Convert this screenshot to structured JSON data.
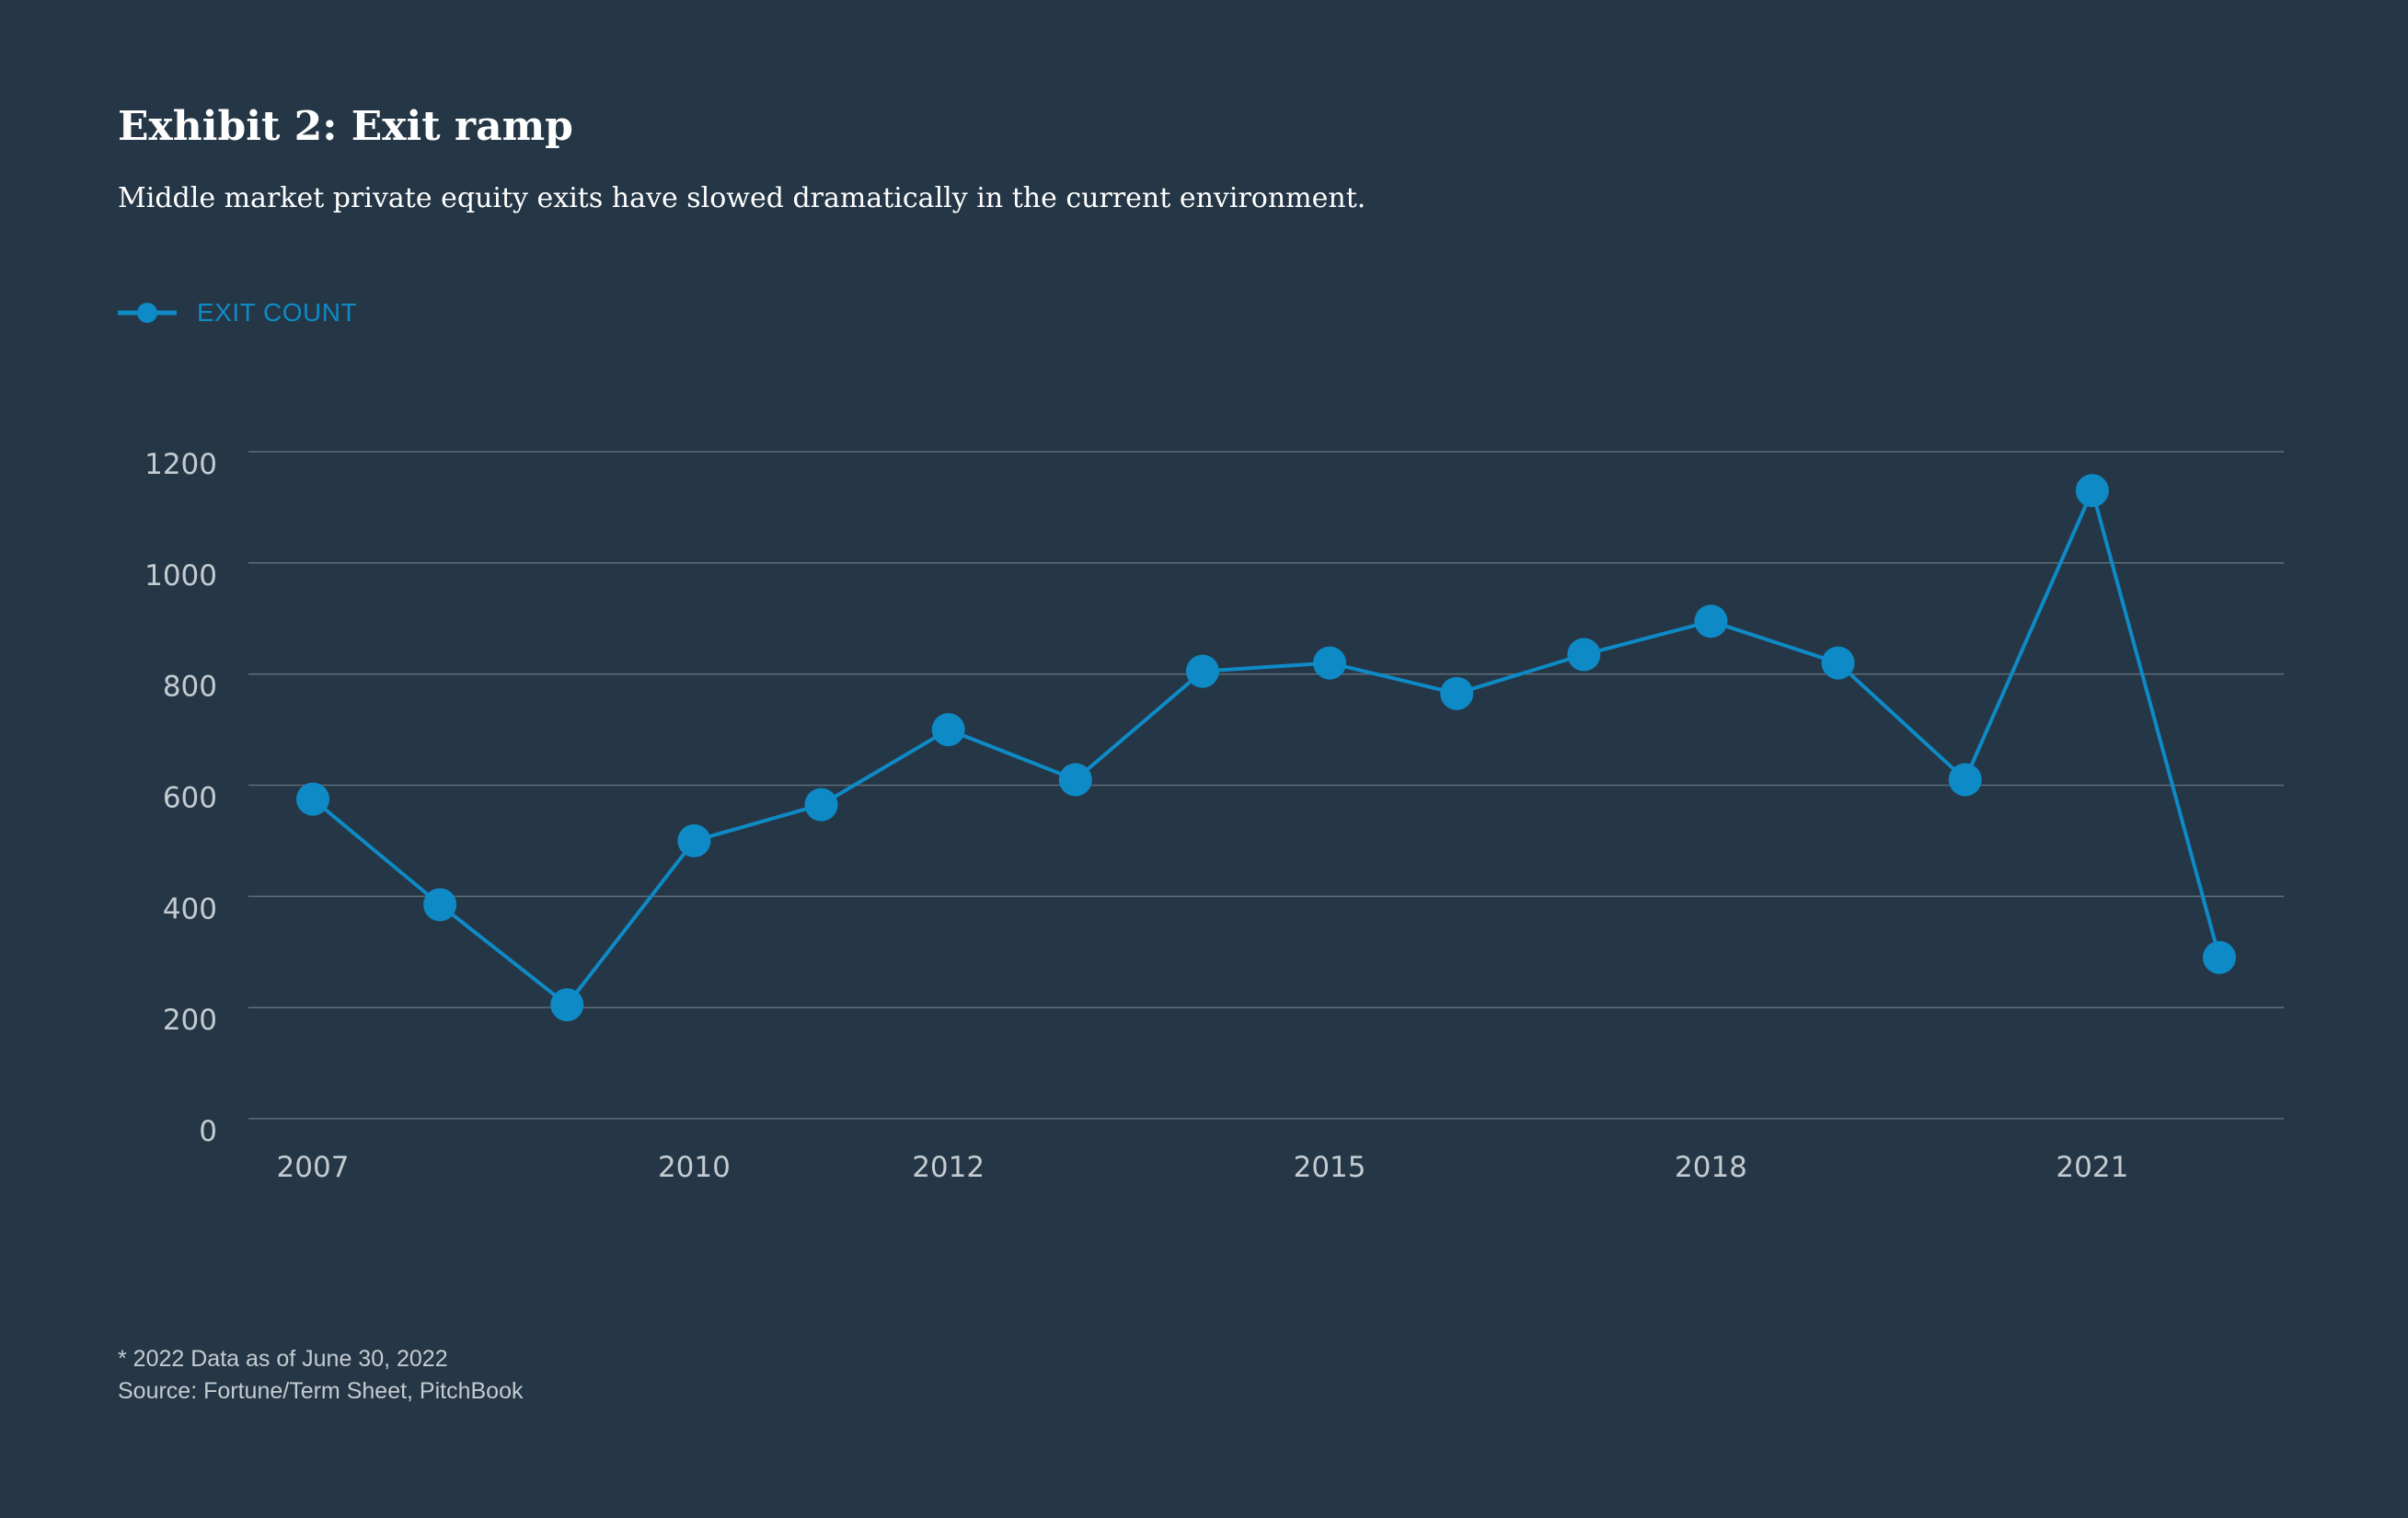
{
  "header": {
    "title": "Exhibit 2: Exit ramp",
    "subtitle": "Middle market private equity exits have slowed dramatically in the current environment."
  },
  "colors": {
    "background": "#253746",
    "series": "#0e8ac6",
    "grid": "#5b6b78",
    "tick_text": "#c4cbd1",
    "title_text": "#ffffff"
  },
  "chart_data": {
    "type": "line",
    "title": "Exhibit 2: Exit ramp",
    "subtitle": "Middle market private equity exits have slowed dramatically in the current environment.",
    "xlabel": "",
    "ylabel": "",
    "x": [
      2007,
      2008,
      2009,
      2010,
      2011,
      2012,
      2013,
      2014,
      2015,
      2016,
      2017,
      2018,
      2019,
      2020,
      2021,
      2022
    ],
    "x_ticks": [
      2007,
      2010,
      2012,
      2015,
      2018,
      2021
    ],
    "x_tick_labels": [
      "2007",
      "2010",
      "2012",
      "2015",
      "2018",
      "2021"
    ],
    "xlim": [
      2007,
      2022
    ],
    "series": [
      {
        "name": "EXIT COUNT",
        "values": [
          575,
          385,
          205,
          500,
          565,
          700,
          610,
          805,
          820,
          765,
          835,
          895,
          820,
          610,
          1130,
          290
        ]
      }
    ],
    "y_ticks": [
      0,
      200,
      400,
      600,
      800,
      1000,
      1200
    ],
    "y_tick_labels": [
      "0",
      "200",
      "400",
      "600",
      "800",
      "1000",
      "1200"
    ],
    "ylim": [
      0,
      1200
    ],
    "grid": true,
    "legend": "top-left"
  },
  "footnotes": {
    "note": "* 2022 Data as of June 30, 2022",
    "source": "Source: Fortune/Term Sheet, PitchBook"
  }
}
